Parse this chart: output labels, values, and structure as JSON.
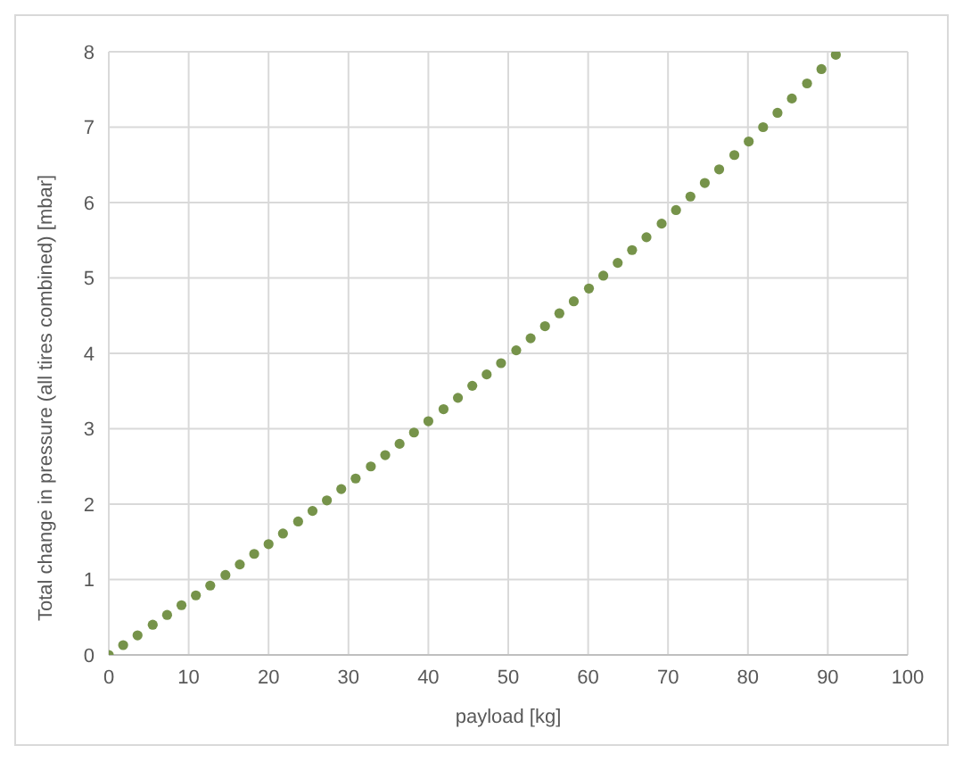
{
  "chart_data": {
    "type": "scatter",
    "xlabel": "payload [kg]",
    "ylabel": "Total change in pressure (all tires combined) [mbar]",
    "x": [
      0,
      1.8,
      3.6,
      5.5,
      7.3,
      9.1,
      10.9,
      12.7,
      14.6,
      16.4,
      18.2,
      20.0,
      21.8,
      23.7,
      25.5,
      27.3,
      29.1,
      30.9,
      32.8,
      34.6,
      36.4,
      38.2,
      40.0,
      41.9,
      43.7,
      45.5,
      47.3,
      49.1,
      51.0,
      52.8,
      54.6,
      56.4,
      58.2,
      60.1,
      61.9,
      63.7,
      65.5,
      67.3,
      69.2,
      71.0,
      72.8,
      74.6,
      76.4,
      78.3,
      80.1,
      81.9,
      83.7,
      85.5,
      87.4,
      89.2,
      91.0
    ],
    "values": [
      0,
      0.13,
      0.26,
      0.4,
      0.53,
      0.66,
      0.79,
      0.92,
      1.06,
      1.2,
      1.34,
      1.47,
      1.61,
      1.77,
      1.91,
      2.05,
      2.2,
      2.34,
      2.5,
      2.65,
      2.8,
      2.95,
      3.1,
      3.26,
      3.41,
      3.57,
      3.72,
      3.87,
      4.04,
      4.2,
      4.36,
      4.53,
      4.69,
      4.86,
      5.03,
      5.2,
      5.37,
      5.54,
      5.72,
      5.9,
      6.08,
      6.26,
      6.44,
      6.63,
      6.81,
      7.0,
      7.19,
      7.38,
      7.58,
      7.77,
      7.96
    ],
    "color": "#76934a",
    "marker": "circle",
    "xlim": [
      0,
      100
    ],
    "xticks": [
      0,
      10,
      20,
      30,
      40,
      50,
      60,
      70,
      80,
      90,
      100
    ],
    "ylim": [
      0,
      8
    ],
    "yticks": [
      0,
      1,
      2,
      3,
      4,
      5,
      6,
      7,
      8
    ],
    "grid": true,
    "legend": false
  }
}
